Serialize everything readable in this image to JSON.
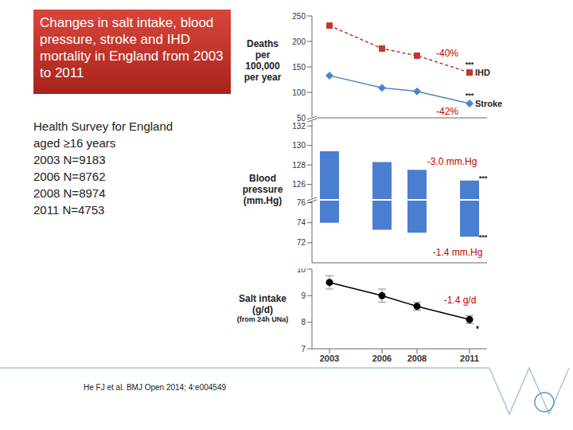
{
  "slide": {
    "title": "Changes in salt intake, blood pressure, stroke and IHD mortality in England from 2003 to 2011",
    "survey": [
      "Health Survey for England",
      "aged ≥16 years",
      "2003 N=9183",
      "2006 N=8762",
      "2008 N=8974",
      "2011 N=4753"
    ],
    "citation": "He FJ et al. BMJ Open 2014; 4:e004549"
  },
  "chart_data": [
    {
      "type": "line",
      "ylabel": "Deaths per 100,000 per year",
      "x": [
        2003,
        2006,
        2008,
        2011
      ],
      "xlim": [
        2002,
        2012
      ],
      "ylim": [
        50,
        250
      ],
      "yticks": [
        50,
        100,
        150,
        200,
        250
      ],
      "tick_labels": "y",
      "series": [
        {
          "name": "IHD",
          "color": "#c0392b",
          "marker": "square",
          "line_style": "dashed",
          "values": [
            231,
            186,
            172,
            139
          ],
          "change": "-40%",
          "significance": "***"
        },
        {
          "name": "Stroke",
          "color": "#4a86c8",
          "marker": "diamond",
          "line_style": "solid",
          "values": [
            133,
            109,
            102,
            78
          ],
          "change": "-42%",
          "significance": "***"
        }
      ]
    },
    {
      "type": "bar",
      "ylabel": "Blood pressure (mm.Hg)",
      "x": [
        2003,
        2006,
        2008,
        2011
      ],
      "xlim": [
        2002,
        2012
      ],
      "values": [
        129.4,
        128.3,
        127.5,
        126.4
      ],
      "low": [
        74.0,
        73.3,
        73.0,
        72.6
      ],
      "color": "#4a7fd0",
      "tick_labels": "y",
      "axis_segments": [
        {
          "ylim": [
            124.5,
            132.5
          ],
          "yticks": [
            126,
            128,
            130,
            132
          ]
        },
        {
          "ylim": [
            70,
            76.2
          ],
          "yticks": [
            72,
            74,
            76
          ]
        }
      ],
      "annotations": [
        {
          "text": "-3.0 mm.Hg",
          "significance": "***"
        },
        {
          "text": "-1.4 mm.Hg",
          "significance": "***"
        }
      ]
    },
    {
      "type": "line",
      "ylabel": "Salt intake (g/d)",
      "ylabel_note": "(from 24h UNa)",
      "x": [
        2003,
        2006,
        2008,
        2011
      ],
      "xlim": [
        2002,
        2012
      ],
      "xticks": [
        2003,
        2006,
        2008,
        2011
      ],
      "ylim": [
        7,
        10
      ],
      "yticks": [
        7,
        8,
        9,
        10
      ],
      "values": [
        9.5,
        9.0,
        8.6,
        8.1
      ],
      "errors": [
        0.25,
        0.25,
        0.15,
        0.15
      ],
      "color": "#000000",
      "marker": "circle",
      "annotations": [
        {
          "text": "-1.4 g/d",
          "significance": "*"
        }
      ]
    }
  ]
}
